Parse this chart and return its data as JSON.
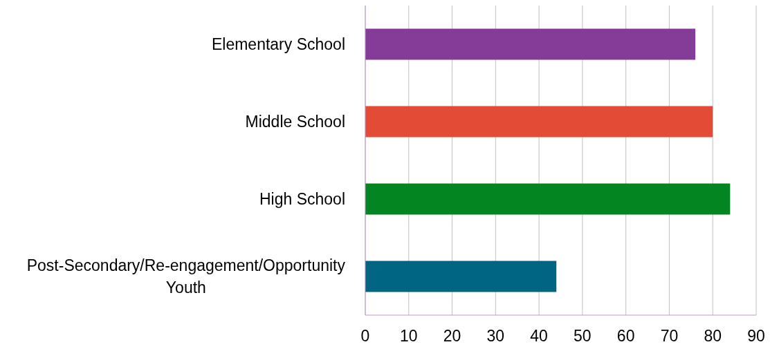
{
  "chart_data": {
    "type": "bar",
    "orientation": "horizontal",
    "categories": [
      "Elementary School",
      "Middle School",
      "High School",
      "Post-Secondary/Re-engagement/Opportunity Youth"
    ],
    "values": [
      76,
      80,
      84,
      44
    ],
    "colors": [
      "#843c98",
      "#e34b37",
      "#038521",
      "#006583"
    ],
    "xlim": [
      0,
      90
    ],
    "xticks": [
      0,
      10,
      20,
      30,
      40,
      50,
      60,
      70,
      80,
      90
    ],
    "grid": "x"
  }
}
